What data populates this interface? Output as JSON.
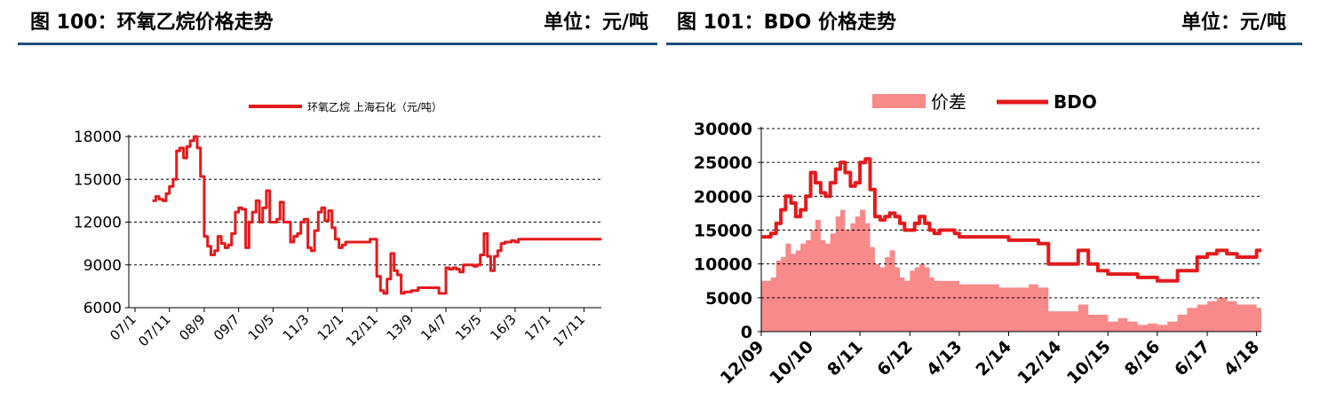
{
  "left_panel": {
    "title": "图 100：环氧乙烷价格走势",
    "unit": "单位：元/吨"
  },
  "right_panel": {
    "title": "图 101：BDO 价格走势",
    "unit": "单位：元/吨"
  },
  "colors": {
    "line": "#e41a1c",
    "area": "#f88a8a",
    "rule": "#1f4e79",
    "grid": "#000000"
  },
  "chart_data": [
    {
      "type": "line",
      "legend_position": "top",
      "grid": "horizontal-dashed",
      "ylim": [
        6000,
        18000
      ],
      "yticks": [
        6000,
        9000,
        12000,
        15000,
        18000
      ],
      "xlim": [
        2007.42,
        2018.25
      ],
      "x_tick_labels": [
        "07/1",
        "07/11",
        "08/9",
        "09/7",
        "10/5",
        "11/3",
        "12/1",
        "12/11",
        "13/9",
        "14/7",
        "15/5",
        "16/3",
        "17/1",
        "17/11"
      ],
      "x_tick_values": [
        2007.0,
        2007.83,
        2008.67,
        2009.5,
        2010.33,
        2011.17,
        2012.0,
        2012.83,
        2013.67,
        2014.5,
        2015.33,
        2016.17,
        2017.0,
        2017.83
      ],
      "series": [
        {
          "name": "环氧乙烷 上海石化（元/吨）",
          "x": [
            2007.42,
            2007.5,
            2007.58,
            2007.67,
            2007.75,
            2007.83,
            2007.92,
            2008.0,
            2008.08,
            2008.17,
            2008.25,
            2008.33,
            2008.42,
            2008.5,
            2008.58,
            2008.67,
            2008.75,
            2008.83,
            2008.92,
            2009.0,
            2009.08,
            2009.17,
            2009.25,
            2009.33,
            2009.42,
            2009.5,
            2009.58,
            2009.67,
            2009.75,
            2009.83,
            2009.92,
            2010.0,
            2010.08,
            2010.17,
            2010.25,
            2010.33,
            2010.42,
            2010.5,
            2010.58,
            2010.67,
            2010.75,
            2010.83,
            2010.92,
            2011.0,
            2011.08,
            2011.17,
            2011.25,
            2011.33,
            2011.42,
            2011.5,
            2011.58,
            2011.67,
            2011.75,
            2011.83,
            2011.92,
            2012.0,
            2012.08,
            2012.17,
            2012.25,
            2012.33,
            2012.42,
            2012.5,
            2012.58,
            2012.67,
            2012.75,
            2012.83,
            2012.92,
            2013.0,
            2013.08,
            2013.17,
            2013.25,
            2013.33,
            2013.42,
            2013.5,
            2013.67,
            2013.83,
            2014.0,
            2014.17,
            2014.33,
            2014.5,
            2014.58,
            2014.67,
            2014.75,
            2014.83,
            2014.92,
            2015.0,
            2015.08,
            2015.17,
            2015.25,
            2015.33,
            2015.42,
            2015.5,
            2015.58,
            2015.67,
            2015.75,
            2015.83,
            2015.92,
            2016.0,
            2016.08,
            2016.17,
            2016.25,
            2016.33,
            2016.42,
            2016.5,
            2016.58,
            2016.67,
            2016.75,
            2016.83,
            2016.92,
            2017.0,
            2017.08,
            2017.17,
            2017.25,
            2017.33,
            2017.42,
            2017.5,
            2017.58,
            2017.67,
            2017.75,
            2017.83,
            2017.92,
            2018.0,
            2018.08,
            2018.17,
            2018.25
          ],
          "y": [
            13500,
            13800,
            13600,
            13500,
            14000,
            14500,
            15000,
            17000,
            17200,
            16500,
            17300,
            17700,
            18000,
            17200,
            15200,
            11000,
            10300,
            9700,
            10000,
            11000,
            10500,
            10200,
            10400,
            11200,
            12700,
            13000,
            12900,
            10200,
            12000,
            12700,
            13500,
            12000,
            13000,
            14200,
            12000,
            12000,
            12200,
            13400,
            12000,
            12000,
            10600,
            11000,
            11200,
            12000,
            12200,
            10200,
            10000,
            11400,
            12700,
            13000,
            12100,
            12800,
            11600,
            10800,
            10200,
            10400,
            10600,
            10600,
            10600,
            10600,
            10600,
            10600,
            10600,
            10800,
            10800,
            8200,
            7200,
            7000,
            8000,
            9800,
            8600,
            8300,
            7000,
            7100,
            7200,
            7400,
            7400,
            7400,
            7000,
            8800,
            8700,
            8800,
            8700,
            8500,
            9000,
            9000,
            9000,
            8900,
            9000,
            9700,
            11200,
            9600,
            8600,
            9600,
            10000,
            10500,
            10600,
            10600,
            10700,
            10600,
            10800,
            10800,
            10800,
            10800,
            10800,
            10800,
            10800,
            10800,
            10800,
            10800,
            10800,
            10800,
            10800,
            10800,
            10800,
            10800,
            10800,
            10800,
            10800,
            10800,
            10800,
            10800,
            10800,
            10800,
            10800
          ]
        }
      ]
    },
    {
      "type": "area",
      "legend_position": "top",
      "grid": "horizontal-dashed",
      "ylim": [
        0,
        30000
      ],
      "yticks": [
        0,
        5000,
        10000,
        15000,
        20000,
        25000,
        30000
      ],
      "xlim": [
        2009.92,
        2018.33
      ],
      "x_tick_labels": [
        "12/09",
        "10/10",
        "8/11",
        "6/12",
        "4/13",
        "2/14",
        "12/14",
        "10/15",
        "8/16",
        "6/17",
        "4/18"
      ],
      "x_tick_values": [
        2009.92,
        2010.75,
        2011.58,
        2012.42,
        2013.25,
        2014.08,
        2014.92,
        2015.75,
        2016.58,
        2017.42,
        2018.25
      ],
      "series": [
        {
          "name": "价差",
          "type": "area",
          "x": [
            2009.92,
            2010.0,
            2010.08,
            2010.17,
            2010.25,
            2010.33,
            2010.42,
            2010.5,
            2010.58,
            2010.67,
            2010.75,
            2010.83,
            2010.92,
            2011.0,
            2011.08,
            2011.17,
            2011.25,
            2011.33,
            2011.42,
            2011.5,
            2011.58,
            2011.67,
            2011.75,
            2011.83,
            2011.92,
            2012.0,
            2012.08,
            2012.17,
            2012.25,
            2012.33,
            2012.42,
            2012.5,
            2012.58,
            2012.67,
            2012.75,
            2012.83,
            2012.92,
            2013.0,
            2013.08,
            2013.17,
            2013.25,
            2013.42,
            2013.58,
            2013.75,
            2013.92,
            2014.08,
            2014.25,
            2014.42,
            2014.58,
            2014.75,
            2014.92,
            2015.08,
            2015.25,
            2015.42,
            2015.58,
            2015.75,
            2015.92,
            2016.08,
            2016.25,
            2016.42,
            2016.58,
            2016.75,
            2016.92,
            2017.08,
            2017.25,
            2017.42,
            2017.58,
            2017.75,
            2017.92,
            2018.08,
            2018.25,
            2018.33
          ],
          "y": [
            7500,
            7500,
            8000,
            10500,
            11000,
            13000,
            11500,
            12000,
            13000,
            13500,
            15000,
            16500,
            13500,
            13000,
            14500,
            17000,
            18000,
            15000,
            16000,
            17000,
            18000,
            16000,
            12500,
            10000,
            9500,
            11000,
            12000,
            9500,
            8000,
            7500,
            9000,
            9500,
            10000,
            9500,
            8000,
            7500,
            7500,
            7500,
            7500,
            7500,
            7000,
            7000,
            7000,
            7000,
            6500,
            6500,
            6500,
            7000,
            6500,
            3000,
            3000,
            3000,
            4000,
            2500,
            2500,
            1500,
            2000,
            1500,
            1000,
            1200,
            1000,
            1500,
            2500,
            3500,
            4000,
            4500,
            5000,
            4500,
            4000,
            4000,
            3500,
            4500
          ]
        },
        {
          "name": "BDO",
          "type": "line",
          "x": [
            2009.92,
            2010.0,
            2010.08,
            2010.17,
            2010.25,
            2010.33,
            2010.42,
            2010.5,
            2010.58,
            2010.67,
            2010.75,
            2010.83,
            2010.92,
            2011.0,
            2011.08,
            2011.17,
            2011.25,
            2011.33,
            2011.42,
            2011.5,
            2011.58,
            2011.67,
            2011.75,
            2011.83,
            2011.92,
            2012.0,
            2012.08,
            2012.17,
            2012.25,
            2012.33,
            2012.42,
            2012.5,
            2012.58,
            2012.67,
            2012.75,
            2012.83,
            2012.92,
            2013.0,
            2013.08,
            2013.17,
            2013.25,
            2013.42,
            2013.58,
            2013.75,
            2013.92,
            2014.08,
            2014.25,
            2014.42,
            2014.58,
            2014.75,
            2014.92,
            2015.08,
            2015.25,
            2015.42,
            2015.58,
            2015.75,
            2015.92,
            2016.08,
            2016.25,
            2016.42,
            2016.58,
            2016.75,
            2016.92,
            2017.08,
            2017.25,
            2017.42,
            2017.58,
            2017.75,
            2017.92,
            2018.08,
            2018.25,
            2018.33
          ],
          "y": [
            14000,
            14000,
            14500,
            16000,
            18000,
            20000,
            19000,
            17000,
            18000,
            20000,
            23500,
            22000,
            20500,
            20000,
            22000,
            24000,
            25000,
            23500,
            21500,
            22000,
            25000,
            25500,
            21000,
            17000,
            16500,
            17000,
            17500,
            17000,
            16000,
            15000,
            15000,
            16000,
            17000,
            16000,
            15000,
            14500,
            15000,
            15000,
            15000,
            14500,
            14000,
            14000,
            14000,
            14000,
            14000,
            13500,
            13500,
            13500,
            13000,
            10000,
            10000,
            10000,
            12000,
            10000,
            9000,
            8500,
            8500,
            8500,
            8000,
            8000,
            7500,
            7500,
            9000,
            9000,
            11000,
            11500,
            12000,
            11500,
            11000,
            11000,
            12000,
            12000
          ]
        }
      ]
    }
  ]
}
